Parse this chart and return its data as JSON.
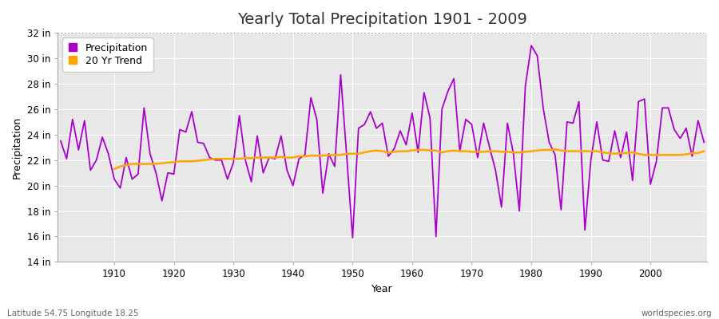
{
  "title": "Yearly Total Precipitation 1901 - 2009",
  "xlabel": "Year",
  "ylabel": "Precipitation",
  "bottom_left_label": "Latitude 54.75 Longitude 18.25",
  "bottom_right_label": "worldspecies.org",
  "precip_color": "#aa00cc",
  "trend_color": "#FFA500",
  "background_color": "#ffffff",
  "plot_bg_color": "#e8e8e8",
  "grid_color": "#ffffff",
  "ylim": [
    14,
    32
  ],
  "yticks": [
    14,
    16,
    18,
    20,
    22,
    24,
    26,
    28,
    30,
    32
  ],
  "ytick_labels": [
    "14 in",
    "16 in",
    "18 in",
    "20 in",
    "22 in",
    "24 in",
    "26 in",
    "28 in",
    "30 in",
    "32 in"
  ],
  "years": [
    1901,
    1902,
    1903,
    1904,
    1905,
    1906,
    1907,
    1908,
    1909,
    1910,
    1911,
    1912,
    1913,
    1914,
    1915,
    1916,
    1917,
    1918,
    1919,
    1920,
    1921,
    1922,
    1923,
    1924,
    1925,
    1926,
    1927,
    1928,
    1929,
    1930,
    1931,
    1932,
    1933,
    1934,
    1935,
    1936,
    1937,
    1938,
    1939,
    1940,
    1941,
    1942,
    1943,
    1944,
    1945,
    1946,
    1947,
    1948,
    1949,
    1950,
    1951,
    1952,
    1953,
    1954,
    1955,
    1956,
    1957,
    1958,
    1959,
    1960,
    1961,
    1962,
    1963,
    1964,
    1965,
    1966,
    1967,
    1968,
    1969,
    1970,
    1971,
    1972,
    1973,
    1974,
    1975,
    1976,
    1977,
    1978,
    1979,
    1980,
    1981,
    1982,
    1983,
    1984,
    1985,
    1986,
    1987,
    1988,
    1989,
    1990,
    1991,
    1992,
    1993,
    1994,
    1995,
    1996,
    1997,
    1998,
    1999,
    2000,
    2001,
    2002,
    2003,
    2004,
    2005,
    2006,
    2007,
    2008,
    2009
  ],
  "precip": [
    23.5,
    22.1,
    25.2,
    22.8,
    25.1,
    21.2,
    22.0,
    23.8,
    22.5,
    20.5,
    19.8,
    22.2,
    20.5,
    20.9,
    26.1,
    22.5,
    21.0,
    18.8,
    21.0,
    20.9,
    24.4,
    24.2,
    25.8,
    23.4,
    23.3,
    22.2,
    22.0,
    22.0,
    20.5,
    21.8,
    25.5,
    22.0,
    20.3,
    23.9,
    21.0,
    22.2,
    22.1,
    23.9,
    21.2,
    20.0,
    22.1,
    22.4,
    26.9,
    25.2,
    19.4,
    22.5,
    21.5,
    28.7,
    22.4,
    15.9,
    24.5,
    24.8,
    25.8,
    24.5,
    24.9,
    22.3,
    22.9,
    24.3,
    23.2,
    25.7,
    22.6,
    27.3,
    25.3,
    16.0,
    26.0,
    27.4,
    28.4,
    22.7,
    25.2,
    24.8,
    22.2,
    24.9,
    23.0,
    21.2,
    18.3,
    24.9,
    22.5,
    18.0,
    27.8,
    31.0,
    30.2,
    26.1,
    23.4,
    22.4,
    18.1,
    25.0,
    24.9,
    26.6,
    16.5,
    22.0,
    25.0,
    22.0,
    21.9,
    24.3,
    22.2,
    24.2,
    20.4,
    26.6,
    26.8,
    20.1,
    21.9,
    26.1,
    26.1,
    24.4,
    23.7,
    24.5,
    22.3,
    25.1,
    23.4
  ],
  "trend_years": [
    1910,
    1911,
    1912,
    1913,
    1914,
    1915,
    1916,
    1917,
    1918,
    1919,
    1920,
    1921,
    1922,
    1923,
    1924,
    1925,
    1926,
    1927,
    1928,
    1929,
    1930,
    1931,
    1932,
    1933,
    1934,
    1935,
    1936,
    1937,
    1938,
    1939,
    1940,
    1941,
    1942,
    1943,
    1944,
    1945,
    1946,
    1947,
    1948,
    1949,
    1950,
    1951,
    1952,
    1953,
    1954,
    1955,
    1956,
    1957,
    1958,
    1959,
    1960,
    1961,
    1962,
    1963,
    1964,
    1965,
    1966,
    1967,
    1968,
    1969,
    1970,
    1971,
    1972,
    1973,
    1974,
    1975,
    1976,
    1977,
    1978,
    1979,
    1980,
    1981,
    1982,
    1983,
    1984,
    1985,
    1986,
    1987,
    1988,
    1989,
    1990,
    1991,
    1992,
    1993,
    1994,
    1995,
    1996,
    1997,
    1998,
    1999,
    2000,
    2001,
    2002,
    2003,
    2004,
    2005,
    2006,
    2007,
    2008,
    2009
  ],
  "trend": [
    21.3,
    21.5,
    21.6,
    21.7,
    21.7,
    21.7,
    21.7,
    21.7,
    21.75,
    21.8,
    21.85,
    21.9,
    21.9,
    21.9,
    21.95,
    22.0,
    22.05,
    22.1,
    22.1,
    22.1,
    22.1,
    22.1,
    22.15,
    22.15,
    22.2,
    22.2,
    22.2,
    22.2,
    22.25,
    22.2,
    22.2,
    22.3,
    22.3,
    22.35,
    22.35,
    22.35,
    22.4,
    22.4,
    22.4,
    22.5,
    22.5,
    22.5,
    22.6,
    22.7,
    22.75,
    22.7,
    22.6,
    22.65,
    22.7,
    22.7,
    22.75,
    22.8,
    22.8,
    22.75,
    22.75,
    22.6,
    22.7,
    22.75,
    22.7,
    22.7,
    22.65,
    22.65,
    22.65,
    22.7,
    22.7,
    22.65,
    22.65,
    22.6,
    22.6,
    22.65,
    22.7,
    22.75,
    22.8,
    22.8,
    22.85,
    22.75,
    22.7,
    22.7,
    22.7,
    22.7,
    22.7,
    22.7,
    22.6,
    22.55,
    22.5,
    22.55,
    22.55,
    22.6,
    22.5,
    22.4,
    22.4,
    22.4,
    22.4,
    22.4,
    22.4,
    22.4,
    22.45,
    22.55,
    22.55,
    22.7
  ],
  "hline_y": 32,
  "title_fontsize": 14,
  "label_fontsize": 9,
  "tick_fontsize": 8.5,
  "legend_fontsize": 9
}
